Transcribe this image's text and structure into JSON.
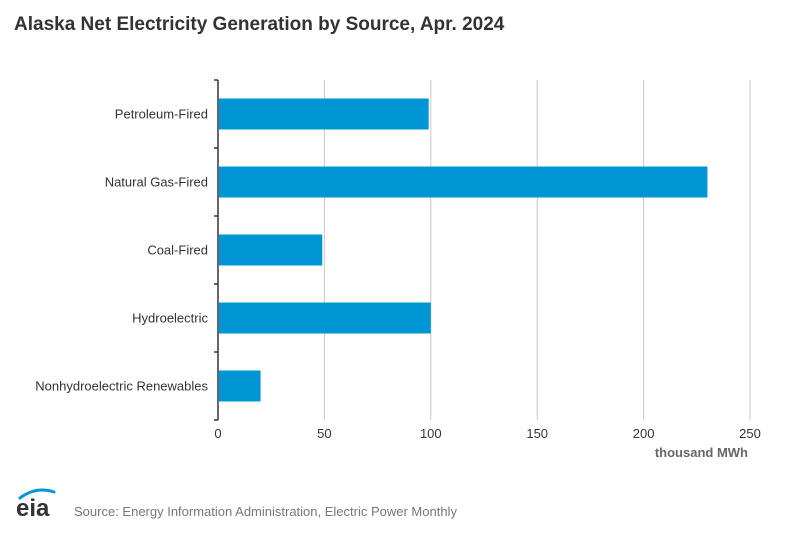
{
  "title": "Alaska Net Electricity Generation by Source, Apr. 2024",
  "source_text": "Source: Energy Information Administration, Electric Power Monthly",
  "logo_text": "eia",
  "colors": {
    "bar": "#0096d6",
    "grid": "#c8c8c8",
    "axis": "#333333",
    "text": "#333333",
    "unit": "#666666"
  },
  "chart_data": {
    "type": "bar",
    "orientation": "horizontal",
    "title": "Alaska Net Electricity Generation by Source, Apr. 2024",
    "categories": [
      "Petroleum-Fired",
      "Natural Gas-Fired",
      "Coal-Fired",
      "Hydroelectric",
      "Nonhydroelectric Renewables"
    ],
    "values": [
      99,
      230,
      49,
      100,
      20
    ],
    "xlabel": "thousand MWh",
    "ylabel": "",
    "xlim": [
      0,
      250
    ],
    "xticks": [
      "0",
      "50",
      "100",
      "150",
      "200",
      "250"
    ],
    "grid": true,
    "legend": "none"
  }
}
